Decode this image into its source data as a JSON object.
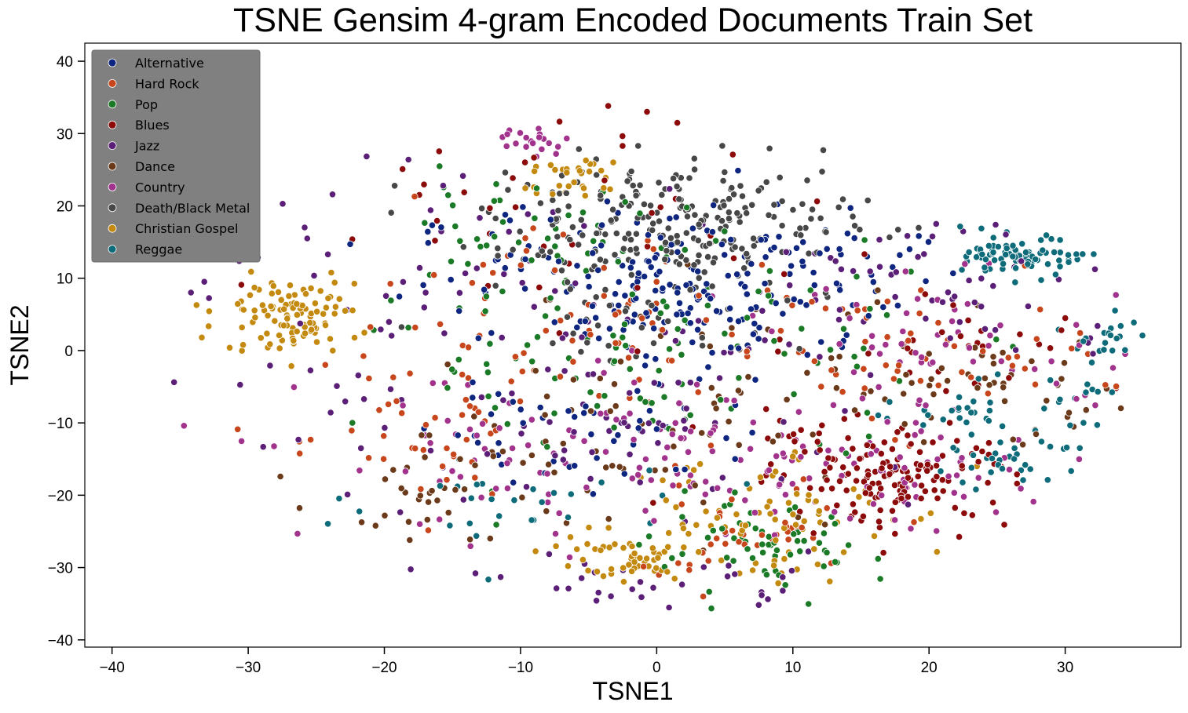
{
  "chart_data": {
    "type": "scatter",
    "title": "TSNE Gensim 4-gram Encoded Documents Train Set",
    "xlabel": "TSNE1",
    "ylabel": "TSNE2",
    "xlim": [
      -42,
      38.5
    ],
    "ylim": [
      -41,
      42.5
    ],
    "xticks": [
      -40,
      -30,
      -20,
      -10,
      0,
      10,
      20,
      30
    ],
    "yticks": [
      -40,
      -30,
      -20,
      -10,
      0,
      10,
      20,
      30,
      40
    ],
    "xtick_labels": [
      "−40",
      "−30",
      "−20",
      "−10",
      "0",
      "10",
      "20",
      "30"
    ],
    "ytick_labels": [
      "−40",
      "−30",
      "−20",
      "−10",
      "0",
      "10",
      "20",
      "30",
      "40"
    ],
    "grid": false,
    "legend_position": "top-left",
    "series": [
      {
        "name": "Alternative",
        "color": "#0f2680",
        "clusters": [
          [
            -2,
            10,
            8,
            5,
            120
          ],
          [
            5,
            6,
            6,
            4,
            60
          ],
          [
            -5,
            -10,
            6,
            5,
            50
          ],
          [
            10,
            12,
            5,
            3,
            40
          ]
        ]
      },
      {
        "name": "Hard Rock",
        "color": "#c7461b",
        "clusters": [
          [
            -8,
            5,
            8,
            6,
            70
          ],
          [
            18,
            0,
            8,
            5,
            60
          ],
          [
            -18,
            -12,
            6,
            5,
            40
          ],
          [
            6,
            -25,
            5,
            4,
            40
          ]
        ]
      },
      {
        "name": "Pop",
        "color": "#1a7a26",
        "clusters": [
          [
            0,
            0,
            10,
            8,
            110
          ],
          [
            8,
            -28,
            4,
            3,
            60
          ],
          [
            -10,
            15,
            6,
            4,
            40
          ]
        ]
      },
      {
        "name": "Blues",
        "color": "#8c0a0a",
        "clusters": [
          [
            18,
            -18,
            4,
            3,
            110
          ],
          [
            14,
            -14,
            6,
            4,
            40
          ],
          [
            -5,
            20,
            10,
            10,
            40
          ],
          [
            22,
            2,
            6,
            4,
            30
          ]
        ]
      },
      {
        "name": "Jazz",
        "color": "#5c1f78",
        "clusters": [
          [
            -3,
            -5,
            12,
            10,
            100
          ],
          [
            20,
            8,
            8,
            6,
            50
          ],
          [
            -20,
            10,
            8,
            8,
            40
          ],
          [
            0,
            -32,
            6,
            2,
            30
          ]
        ]
      },
      {
        "name": "Dance",
        "color": "#6b3a1a",
        "clusters": [
          [
            3,
            -8,
            10,
            8,
            80
          ],
          [
            -15,
            -20,
            5,
            4,
            40
          ],
          [
            25,
            -5,
            5,
            4,
            40
          ]
        ]
      },
      {
        "name": "Country",
        "color": "#a2338c",
        "clusters": [
          [
            -5,
            -15,
            10,
            6,
            100
          ],
          [
            15,
            -18,
            6,
            4,
            70
          ],
          [
            22,
            0,
            8,
            5,
            60
          ],
          [
            -9,
            29,
            1.2,
            1,
            20
          ]
        ]
      },
      {
        "name": "Death/Black Metal",
        "color": "#474747",
        "clusters": [
          [
            2,
            18,
            7,
            4,
            220
          ],
          [
            0,
            8,
            6,
            5,
            50
          ]
        ]
      },
      {
        "name": "Christian Gospel",
        "color": "#c48a10",
        "clusters": [
          [
            -27,
            5,
            2.5,
            2.5,
            110
          ],
          [
            7,
            -22,
            5,
            5,
            80
          ],
          [
            -3,
            -29,
            3,
            2,
            50
          ],
          [
            -6,
            24,
            2,
            1.5,
            30
          ]
        ]
      },
      {
        "name": "Reggae",
        "color": "#0d6b7a",
        "clusters": [
          [
            27,
            13,
            2,
            1.3,
            90
          ],
          [
            24,
            -8,
            4,
            2,
            40
          ],
          [
            26,
            -15,
            3,
            2,
            30
          ],
          [
            33,
            2,
            1.5,
            1.5,
            20
          ],
          [
            -10,
            -22,
            6,
            4,
            30
          ]
        ]
      }
    ]
  }
}
